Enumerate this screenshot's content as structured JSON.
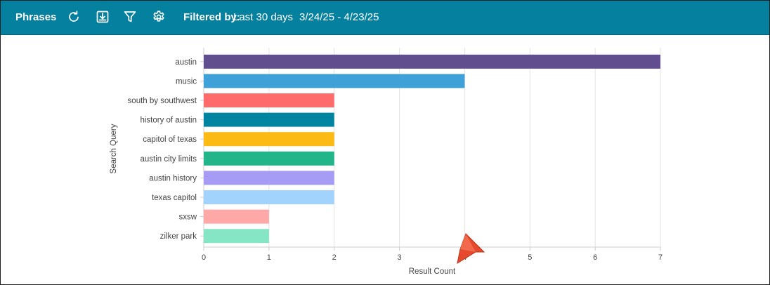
{
  "toolbar": {
    "title": "Phrases",
    "icons": [
      "refresh-icon",
      "download-icon",
      "filter-icon",
      "gear-icon"
    ],
    "filter_label": "Filtered by:",
    "filter_value": "Last 30 days",
    "date_range": "3/24/25 - 4/23/25",
    "background": "#05809f"
  },
  "chart_data": {
    "type": "bar",
    "orientation": "horizontal",
    "categories": [
      "austin",
      "music",
      "south by southwest",
      "history of austin",
      "capitol of texas",
      "austin city limits",
      "austin history",
      "texas capitol",
      "sxsw",
      "zilker park"
    ],
    "values": [
      7,
      4,
      2,
      2,
      2,
      2,
      2,
      2,
      1,
      1
    ],
    "colors": [
      "#614e8f",
      "#3fa1d8",
      "#ff6b6b",
      "#00849f",
      "#fbbb14",
      "#22b58a",
      "#a69cf6",
      "#a1d3fd",
      "#ffa8a8",
      "#84e6c5"
    ],
    "xlabel": "Result Count",
    "ylabel": "Search Query",
    "xlim": [
      0,
      7
    ],
    "xticks": [
      "0",
      "1",
      "2",
      "3",
      "4",
      "5",
      "6",
      "7"
    ],
    "grid": true
  }
}
